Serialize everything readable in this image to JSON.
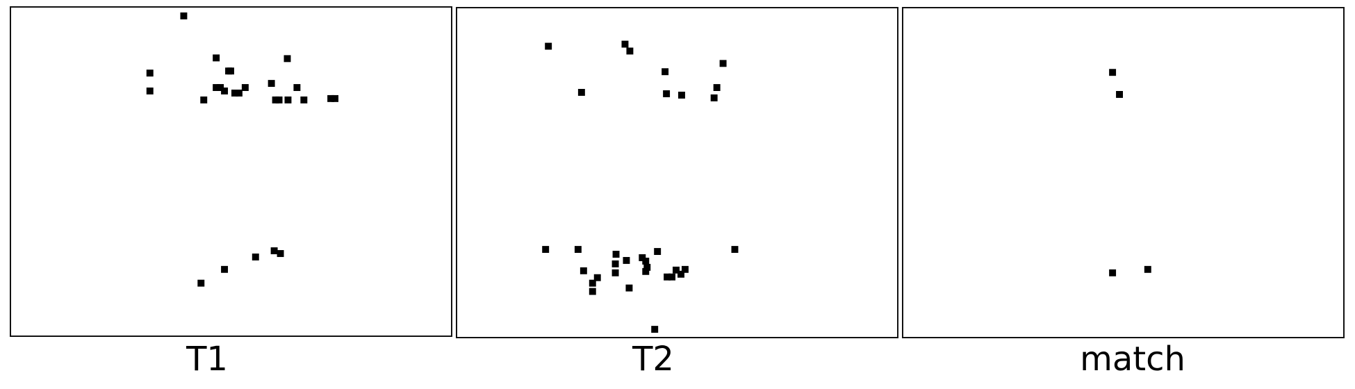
{
  "panels": [
    {
      "label": "T1",
      "points": [
        [
          250,
          12
        ],
        [
          297,
          73
        ],
        [
          201,
          95
        ],
        [
          318,
          92
        ],
        [
          315,
          92
        ],
        [
          400,
          74
        ],
        [
          201,
          121
        ],
        [
          279,
          134
        ],
        [
          297,
          116
        ],
        [
          303,
          116
        ],
        [
          309,
          121
        ],
        [
          324,
          124
        ],
        [
          330,
          124
        ],
        [
          339,
          116
        ],
        [
          377,
          110
        ],
        [
          383,
          134
        ],
        [
          388,
          134
        ],
        [
          401,
          134
        ],
        [
          414,
          116
        ],
        [
          424,
          134
        ],
        [
          463,
          132
        ],
        [
          469,
          132
        ],
        [
          390,
          357
        ],
        [
          381,
          353
        ],
        [
          354,
          362
        ],
        [
          309,
          380
        ],
        [
          275,
          400
        ]
      ]
    },
    {
      "label": "T2",
      "points": [
        [
          132,
          55
        ],
        [
          243,
          52
        ],
        [
          250,
          62
        ],
        [
          180,
          122
        ],
        [
          301,
          92
        ],
        [
          303,
          124
        ],
        [
          325,
          126
        ],
        [
          385,
          80
        ],
        [
          376,
          115
        ],
        [
          372,
          130
        ],
        [
          128,
          350
        ],
        [
          175,
          350
        ],
        [
          230,
          357
        ],
        [
          183,
          381
        ],
        [
          203,
          391
        ],
        [
          196,
          399
        ],
        [
          196,
          411
        ],
        [
          229,
          371
        ],
        [
          229,
          384
        ],
        [
          245,
          366
        ],
        [
          268,
          362
        ],
        [
          273,
          367
        ],
        [
          275,
          376
        ],
        [
          273,
          382
        ],
        [
          290,
          353
        ],
        [
          304,
          390
        ],
        [
          311,
          390
        ],
        [
          317,
          380
        ],
        [
          324,
          386
        ],
        [
          330,
          379
        ],
        [
          249,
          406
        ],
        [
          286,
          466
        ],
        [
          402,
          350
        ]
      ]
    },
    {
      "label": "match",
      "points": [
        [
          303,
          93
        ],
        [
          313,
          125
        ],
        [
          303,
          384
        ],
        [
          354,
          379
        ]
      ]
    }
  ]
}
